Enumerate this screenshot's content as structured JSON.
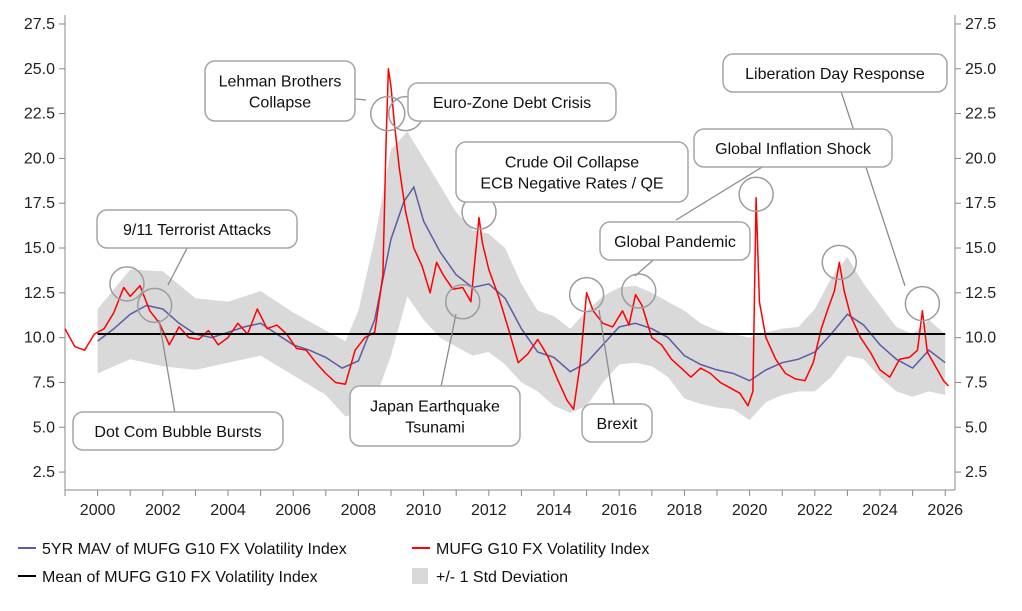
{
  "chart_data": {
    "type": "line",
    "title": "",
    "xlabel": "",
    "ylabel": "",
    "xlim": [
      1999.0,
      2026.3
    ],
    "ylim": [
      1.5,
      28.0
    ],
    "y_ticks": [
      "2.5",
      "5.0",
      "7.5",
      "10.0",
      "12.5",
      "15.0",
      "17.5",
      "20.0",
      "22.5",
      "25.0",
      "27.5"
    ],
    "x_ticks": [
      "2000",
      "2002",
      "2004",
      "2006",
      "2008",
      "2010",
      "2012",
      "2014",
      "2016",
      "2018",
      "2020",
      "2022",
      "2024",
      "2026"
    ],
    "grid": false,
    "dual_y_axis": true,
    "legend_position": "bottom",
    "series": [
      {
        "name": "MUFG G10 FX Volatility Index",
        "color": "#ff0000",
        "points": [
          [
            1999.0,
            10.5
          ],
          [
            1999.3,
            9.5
          ],
          [
            1999.6,
            9.3
          ],
          [
            1999.9,
            10.2
          ],
          [
            2000.2,
            10.5
          ],
          [
            2000.5,
            11.4
          ],
          [
            2000.8,
            12.8
          ],
          [
            2001.0,
            12.3
          ],
          [
            2001.3,
            12.9
          ],
          [
            2001.6,
            11.5
          ],
          [
            2001.9,
            10.8
          ],
          [
            2002.2,
            9.6
          ],
          [
            2002.5,
            10.6
          ],
          [
            2002.8,
            10.0
          ],
          [
            2003.1,
            9.9
          ],
          [
            2003.4,
            10.4
          ],
          [
            2003.7,
            9.6
          ],
          [
            2004.0,
            10.0
          ],
          [
            2004.3,
            10.8
          ],
          [
            2004.6,
            10.2
          ],
          [
            2004.9,
            11.6
          ],
          [
            2005.2,
            10.5
          ],
          [
            2005.5,
            10.7
          ],
          [
            2005.8,
            10.2
          ],
          [
            2006.1,
            9.4
          ],
          [
            2006.4,
            9.3
          ],
          [
            2006.7,
            8.6
          ],
          [
            2007.0,
            8.0
          ],
          [
            2007.3,
            7.5
          ],
          [
            2007.6,
            7.4
          ],
          [
            2007.9,
            9.3
          ],
          [
            2008.2,
            10.0
          ],
          [
            2008.5,
            10.3
          ],
          [
            2008.75,
            13.5
          ],
          [
            2008.85,
            21.0
          ],
          [
            2008.92,
            25.0
          ],
          [
            2009.0,
            24.0
          ],
          [
            2009.1,
            22.0
          ],
          [
            2009.25,
            19.5
          ],
          [
            2009.45,
            17.0
          ],
          [
            2009.7,
            15.0
          ],
          [
            2009.95,
            14.0
          ],
          [
            2010.2,
            12.5
          ],
          [
            2010.4,
            14.2
          ],
          [
            2010.6,
            13.5
          ],
          [
            2010.9,
            12.7
          ],
          [
            2011.2,
            12.8
          ],
          [
            2011.45,
            12.0
          ],
          [
            2011.7,
            16.7
          ],
          [
            2011.8,
            15.3
          ],
          [
            2012.0,
            13.8
          ],
          [
            2012.3,
            12.3
          ],
          [
            2012.6,
            10.5
          ],
          [
            2012.9,
            8.6
          ],
          [
            2013.2,
            9.1
          ],
          [
            2013.5,
            9.9
          ],
          [
            2013.8,
            9.0
          ],
          [
            2014.1,
            7.7
          ],
          [
            2014.4,
            6.5
          ],
          [
            2014.6,
            6.0
          ],
          [
            2014.8,
            8.5
          ],
          [
            2015.0,
            12.5
          ],
          [
            2015.2,
            11.5
          ],
          [
            2015.5,
            10.8
          ],
          [
            2015.8,
            10.6
          ],
          [
            2016.1,
            11.5
          ],
          [
            2016.3,
            10.7
          ],
          [
            2016.5,
            12.4
          ],
          [
            2016.7,
            11.8
          ],
          [
            2017.0,
            10.0
          ],
          [
            2017.3,
            9.6
          ],
          [
            2017.6,
            8.8
          ],
          [
            2017.9,
            8.3
          ],
          [
            2018.2,
            7.8
          ],
          [
            2018.5,
            8.3
          ],
          [
            2018.8,
            8.0
          ],
          [
            2019.1,
            7.5
          ],
          [
            2019.4,
            7.2
          ],
          [
            2019.7,
            6.9
          ],
          [
            2019.95,
            6.2
          ],
          [
            2020.1,
            7.0
          ],
          [
            2020.2,
            17.8
          ],
          [
            2020.3,
            12.0
          ],
          [
            2020.5,
            10.0
          ],
          [
            2020.8,
            8.8
          ],
          [
            2021.1,
            8.0
          ],
          [
            2021.4,
            7.7
          ],
          [
            2021.7,
            7.6
          ],
          [
            2021.95,
            8.6
          ],
          [
            2022.2,
            10.5
          ],
          [
            2022.4,
            11.6
          ],
          [
            2022.6,
            12.6
          ],
          [
            2022.75,
            14.2
          ],
          [
            2022.9,
            12.6
          ],
          [
            2023.1,
            11.2
          ],
          [
            2023.4,
            10.0
          ],
          [
            2023.7,
            9.2
          ],
          [
            2024.0,
            8.2
          ],
          [
            2024.3,
            7.8
          ],
          [
            2024.6,
            8.8
          ],
          [
            2024.9,
            8.9
          ],
          [
            2025.15,
            9.3
          ],
          [
            2025.3,
            11.5
          ],
          [
            2025.45,
            9.2
          ],
          [
            2025.7,
            8.4
          ],
          [
            2025.95,
            7.6
          ],
          [
            2026.1,
            7.3
          ]
        ]
      },
      {
        "name": "5YR MAV of MUFG G10 FX Volatility Index",
        "color": "#5b5ba8",
        "points": [
          [
            2000.0,
            9.8
          ],
          [
            2000.5,
            10.5
          ],
          [
            2001.0,
            11.3
          ],
          [
            2001.5,
            11.8
          ],
          [
            2002.0,
            11.6
          ],
          [
            2002.5,
            10.8
          ],
          [
            2003.0,
            10.2
          ],
          [
            2003.5,
            10.0
          ],
          [
            2004.0,
            10.3
          ],
          [
            2004.5,
            10.6
          ],
          [
            2005.0,
            10.8
          ],
          [
            2005.5,
            10.2
          ],
          [
            2006.0,
            9.6
          ],
          [
            2006.5,
            9.3
          ],
          [
            2007.0,
            8.9
          ],
          [
            2007.5,
            8.3
          ],
          [
            2008.0,
            8.7
          ],
          [
            2008.5,
            11.0
          ],
          [
            2009.0,
            15.5
          ],
          [
            2009.4,
            17.6
          ],
          [
            2009.7,
            18.4
          ],
          [
            2010.0,
            16.5
          ],
          [
            2010.5,
            14.8
          ],
          [
            2011.0,
            13.5
          ],
          [
            2011.5,
            12.8
          ],
          [
            2012.0,
            13.0
          ],
          [
            2012.5,
            12.2
          ],
          [
            2013.0,
            10.5
          ],
          [
            2013.5,
            9.2
          ],
          [
            2014.0,
            8.9
          ],
          [
            2014.5,
            8.1
          ],
          [
            2015.0,
            8.6
          ],
          [
            2015.5,
            9.6
          ],
          [
            2016.0,
            10.6
          ],
          [
            2016.5,
            10.8
          ],
          [
            2017.0,
            10.5
          ],
          [
            2017.5,
            10.0
          ],
          [
            2018.0,
            9.0
          ],
          [
            2018.5,
            8.5
          ],
          [
            2019.0,
            8.2
          ],
          [
            2019.5,
            8.0
          ],
          [
            2020.0,
            7.6
          ],
          [
            2020.5,
            8.2
          ],
          [
            2021.0,
            8.6
          ],
          [
            2021.5,
            8.8
          ],
          [
            2022.0,
            9.2
          ],
          [
            2022.5,
            10.2
          ],
          [
            2023.0,
            11.3
          ],
          [
            2023.5,
            10.7
          ],
          [
            2024.0,
            9.6
          ],
          [
            2024.5,
            8.8
          ],
          [
            2025.0,
            8.3
          ],
          [
            2025.5,
            9.3
          ],
          [
            2026.0,
            8.6
          ]
        ]
      },
      {
        "name": "Mean of MUFG G10 FX Volatility Index",
        "color": "#000000",
        "value": 10.2
      },
      {
        "name": "+/- 1 Std Deviation",
        "color": "#d9d9d9",
        "band": [
          [
            2000.0,
            8.0,
            11.6
          ],
          [
            2001.0,
            8.8,
            13.8
          ],
          [
            2002.0,
            8.4,
            13.7
          ],
          [
            2003.0,
            8.2,
            12.2
          ],
          [
            2004.0,
            8.6,
            12.0
          ],
          [
            2005.0,
            9.0,
            12.6
          ],
          [
            2006.0,
            7.9,
            11.4
          ],
          [
            2007.0,
            6.8,
            10.4
          ],
          [
            2007.6,
            5.6,
            9.8
          ],
          [
            2008.0,
            5.8,
            11.5
          ],
          [
            2008.5,
            6.5,
            15.5
          ],
          [
            2009.0,
            9.0,
            20.5
          ],
          [
            2009.5,
            12.3,
            21.5
          ],
          [
            2010.0,
            11.0,
            20.0
          ],
          [
            2010.5,
            10.0,
            18.5
          ],
          [
            2011.0,
            9.5,
            17.0
          ],
          [
            2011.5,
            9.0,
            16.0
          ],
          [
            2012.0,
            9.2,
            15.8
          ],
          [
            2012.5,
            8.5,
            15.0
          ],
          [
            2013.0,
            7.5,
            13.0
          ],
          [
            2013.5,
            7.0,
            11.5
          ],
          [
            2014.0,
            6.2,
            11.2
          ],
          [
            2014.5,
            5.8,
            10.5
          ],
          [
            2015.0,
            6.2,
            11.5
          ],
          [
            2015.5,
            7.5,
            12.3
          ],
          [
            2016.0,
            8.5,
            12.8
          ],
          [
            2016.5,
            8.6,
            12.9
          ],
          [
            2017.0,
            8.4,
            12.5
          ],
          [
            2017.5,
            7.8,
            12.0
          ],
          [
            2018.0,
            6.6,
            11.5
          ],
          [
            2018.5,
            6.3,
            10.8
          ],
          [
            2019.0,
            6.1,
            10.4
          ],
          [
            2019.5,
            6.0,
            10.2
          ],
          [
            2020.0,
            5.4,
            10.0
          ],
          [
            2020.5,
            6.4,
            10.3
          ],
          [
            2021.0,
            6.8,
            10.5
          ],
          [
            2021.5,
            7.0,
            10.6
          ],
          [
            2022.0,
            7.0,
            11.6
          ],
          [
            2022.5,
            7.8,
            13.3
          ],
          [
            2023.0,
            9.0,
            14.5
          ],
          [
            2023.5,
            8.8,
            13.0
          ],
          [
            2024.0,
            7.8,
            11.8
          ],
          [
            2024.5,
            7.0,
            10.6
          ],
          [
            2025.0,
            6.7,
            10.2
          ],
          [
            2025.5,
            7.0,
            11.0
          ],
          [
            2026.0,
            6.8,
            10.2
          ]
        ]
      }
    ],
    "annotations": [
      {
        "lines": [
          "Lehman Brothers",
          "Collapse"
        ],
        "x": 2008.9,
        "y": 22.5
      },
      {
        "lines": [
          "Euro-Zone Debt Crisis"
        ],
        "x": 2009.45,
        "y": 22.5
      },
      {
        "lines": [
          "Crude Oil Collapse",
          "ECB Negative Rates / QE"
        ],
        "x": 2011.7,
        "y": 17.0
      },
      {
        "lines": [
          "9/11 Terrorist Attacks"
        ],
        "x": 2000.9,
        "y": 13.0
      },
      {
        "lines": [
          "Dot Com Bubble Bursts"
        ],
        "x": 2001.75,
        "y": 11.8
      },
      {
        "lines": [
          "Japan Earthquake",
          "Tsunami"
        ],
        "x": 2011.2,
        "y": 12.0
      },
      {
        "lines": [
          "Brexit"
        ],
        "x": 2015.0,
        "y": 12.4
      },
      {
        "lines": [
          "Global Pandemic"
        ],
        "x": 2016.6,
        "y": 12.6
      },
      {
        "lines": [
          "Global Inflation Shock"
        ],
        "x": 2020.2,
        "y": 18.0
      },
      {
        "lines": [
          "Liberation Day Response"
        ],
        "x": 2025.3,
        "y": 11.9
      },
      {
        "lines": [],
        "x": 2022.75,
        "y": 14.2
      }
    ]
  }
}
